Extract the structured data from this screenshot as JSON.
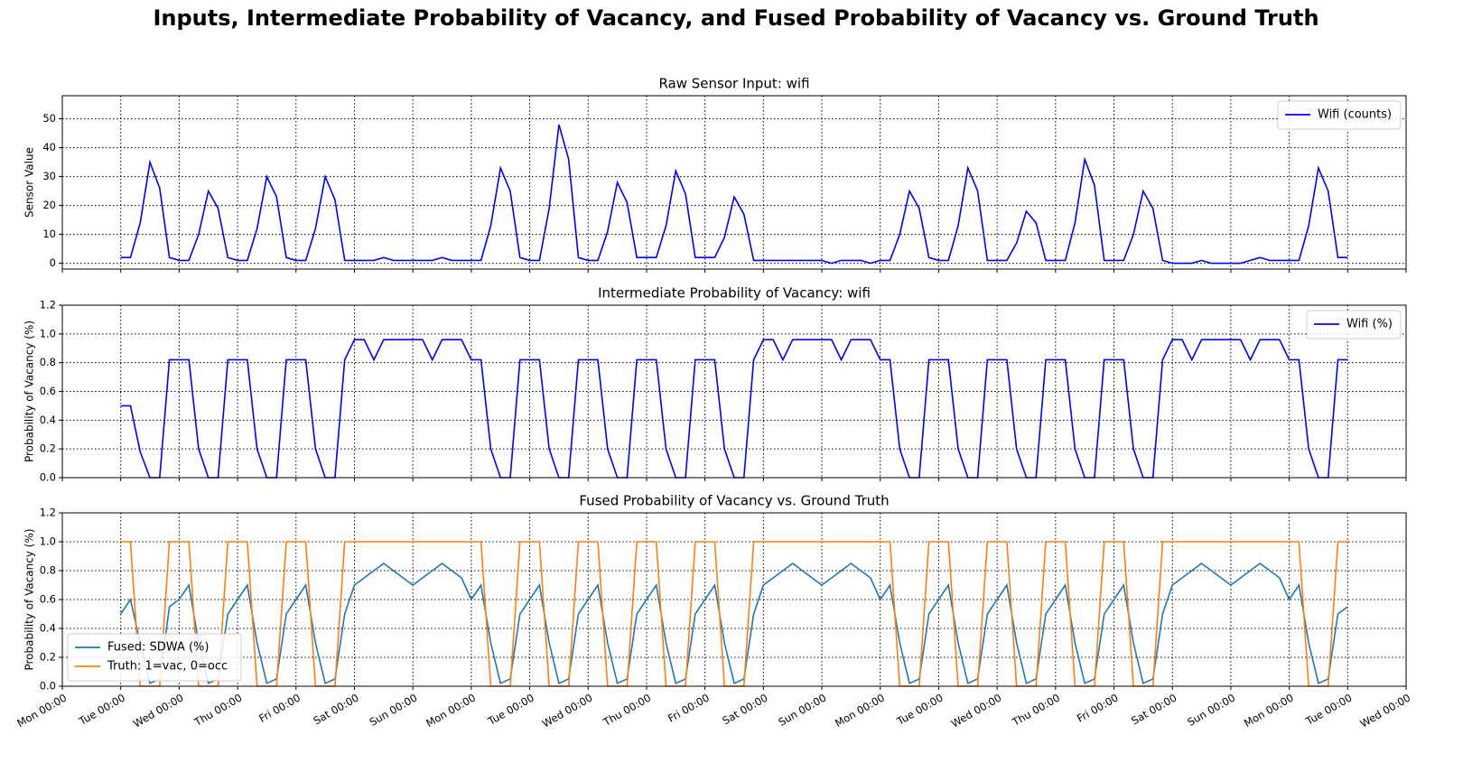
{
  "title": "Inputs, Intermediate Probability of Vacancy, and Fused Probability of Vacancy vs. Ground Truth",
  "chart_data": [
    {
      "type": "line",
      "title": "Raw Sensor Input: wifi",
      "ylabel": "Sensor Value",
      "legend": "upper right",
      "grid": true,
      "xlim": [
        0,
        552
      ],
      "ylim": [
        -2,
        58
      ],
      "yticks": [
        0,
        10,
        20,
        30,
        40,
        50
      ],
      "x": [
        24,
        28,
        32,
        36,
        40,
        44,
        48,
        52,
        56,
        60,
        64,
        68,
        72,
        76,
        80,
        84,
        88,
        92,
        96,
        100,
        104,
        108,
        112,
        116,
        120,
        124,
        128,
        132,
        136,
        140,
        144,
        148,
        152,
        156,
        160,
        164,
        168,
        172,
        176,
        180,
        184,
        188,
        192,
        196,
        200,
        204,
        208,
        212,
        216,
        220,
        224,
        228,
        232,
        236,
        240,
        244,
        248,
        252,
        256,
        260,
        264,
        268,
        272,
        276,
        280,
        284,
        288,
        292,
        296,
        300,
        304,
        308,
        312,
        316,
        320,
        324,
        328,
        332,
        336,
        340,
        344,
        348,
        352,
        356,
        360,
        364,
        368,
        372,
        376,
        380,
        384,
        388,
        392,
        396,
        400,
        404,
        408,
        412,
        416,
        420,
        424,
        428,
        432,
        436,
        440,
        444,
        448,
        452,
        456,
        460,
        464,
        468,
        472,
        476,
        480,
        484,
        488,
        492,
        496,
        500,
        504,
        508,
        512,
        516,
        520,
        524,
        528
      ],
      "series": [
        {
          "name": "Wifi (counts)",
          "color": "#0000ff",
          "values": [
            2,
            2,
            14,
            35,
            26,
            2,
            1,
            1,
            10,
            25,
            19,
            2,
            1,
            1,
            12,
            30,
            23,
            2,
            1,
            1,
            12,
            30,
            22,
            1,
            1,
            1,
            1,
            2,
            1,
            1,
            1,
            1,
            1,
            2,
            1,
            1,
            1,
            1,
            13,
            33,
            25,
            2,
            1,
            1,
            19,
            48,
            36,
            2,
            1,
            1,
            11,
            28,
            21,
            2,
            2,
            2,
            13,
            32,
            24,
            2,
            2,
            2,
            9,
            23,
            17,
            1,
            1,
            1,
            1,
            1,
            1,
            1,
            1,
            0,
            1,
            1,
            1,
            0,
            1,
            1,
            10,
            25,
            19,
            2,
            1,
            1,
            13,
            33,
            25,
            1,
            1,
            1,
            7,
            18,
            14,
            1,
            1,
            1,
            14,
            36,
            27,
            1,
            1,
            1,
            10,
            25,
            19,
            1,
            0,
            0,
            0,
            1,
            0,
            0,
            0,
            0,
            1,
            2,
            1,
            1,
            1,
            1,
            13,
            33,
            25,
            2,
            2
          ]
        }
      ]
    },
    {
      "type": "line",
      "title": "Intermediate Probability of Vacancy: wifi",
      "ylabel": "Probability of Vacancy (%)",
      "legend": "upper right",
      "grid": true,
      "xlim": [
        0,
        552
      ],
      "ylim": [
        0,
        1.2
      ],
      "yticks": [
        {
          "value": 0,
          "label": "0.0"
        },
        0.2,
        0.4,
        0.6,
        0.8,
        {
          "value": 1,
          "label": "1.0"
        },
        1.2
      ],
      "x": [
        24,
        28,
        32,
        36,
        40,
        44,
        48,
        52,
        56,
        60,
        64,
        68,
        72,
        76,
        80,
        84,
        88,
        92,
        96,
        100,
        104,
        108,
        112,
        116,
        120,
        124,
        128,
        132,
        136,
        140,
        144,
        148,
        152,
        156,
        160,
        164,
        168,
        172,
        176,
        180,
        184,
        188,
        192,
        196,
        200,
        204,
        208,
        212,
        216,
        220,
        224,
        228,
        232,
        236,
        240,
        244,
        248,
        252,
        256,
        260,
        264,
        268,
        272,
        276,
        280,
        284,
        288,
        292,
        296,
        300,
        304,
        308,
        312,
        316,
        320,
        324,
        328,
        332,
        336,
        340,
        344,
        348,
        352,
        356,
        360,
        364,
        368,
        372,
        376,
        380,
        384,
        388,
        392,
        396,
        400,
        404,
        408,
        412,
        416,
        420,
        424,
        428,
        432,
        436,
        440,
        444,
        448,
        452,
        456,
        460,
        464,
        468,
        472,
        476,
        480,
        484,
        488,
        492,
        496,
        500,
        504,
        508,
        512,
        516,
        520,
        524,
        528
      ],
      "series": [
        {
          "name": "Wifi (%)",
          "color": "#0000ff",
          "values": [
            0.5,
            0.5,
            0.18,
            0,
            0,
            0.82,
            0.82,
            0.82,
            0.2,
            0,
            0,
            0.82,
            0.82,
            0.82,
            0.2,
            0,
            0,
            0.82,
            0.82,
            0.82,
            0.2,
            0,
            0,
            0.82,
            0.96,
            0.96,
            0.82,
            0.96,
            0.96,
            0.96,
            0.96,
            0.96,
            0.82,
            0.96,
            0.96,
            0.96,
            0.82,
            0.82,
            0.2,
            0,
            0,
            0.82,
            0.82,
            0.82,
            0.2,
            0,
            0,
            0.82,
            0.82,
            0.82,
            0.2,
            0,
            0,
            0.82,
            0.82,
            0.82,
            0.2,
            0,
            0,
            0.82,
            0.82,
            0.82,
            0.2,
            0,
            0,
            0.82,
            0.96,
            0.96,
            0.82,
            0.96,
            0.96,
            0.96,
            0.96,
            0.96,
            0.82,
            0.96,
            0.96,
            0.96,
            0.82,
            0.82,
            0.2,
            0,
            0,
            0.82,
            0.82,
            0.82,
            0.2,
            0,
            0,
            0.82,
            0.82,
            0.82,
            0.2,
            0,
            0,
            0.82,
            0.82,
            0.82,
            0.2,
            0,
            0,
            0.82,
            0.82,
            0.82,
            0.2,
            0,
            0,
            0.82,
            0.96,
            0.96,
            0.82,
            0.96,
            0.96,
            0.96,
            0.96,
            0.96,
            0.82,
            0.96,
            0.96,
            0.96,
            0.82,
            0.82,
            0.2,
            0,
            0,
            0.82,
            0.82
          ]
        }
      ]
    },
    {
      "type": "line",
      "title": "Fused Probability of Vacancy vs. Ground Truth",
      "ylabel": "Probability of Vacancy (%)",
      "legend": "lower left",
      "grid": true,
      "xlim": [
        0,
        552
      ],
      "ylim": [
        0,
        1.2
      ],
      "yticks": [
        {
          "value": 0,
          "label": "0.0"
        },
        0.2,
        0.4,
        0.6,
        0.8,
        {
          "value": 1,
          "label": "1.0"
        },
        1.2
      ],
      "xticks": [
        {
          "value": 0,
          "label": "Mon 00:00"
        },
        {
          "value": 24,
          "label": "Tue 00:00"
        },
        {
          "value": 48,
          "label": "Wed 00:00"
        },
        {
          "value": 72,
          "label": "Thu 00:00"
        },
        {
          "value": 96,
          "label": "Fri 00:00"
        },
        {
          "value": 120,
          "label": "Sat 00:00"
        },
        {
          "value": 144,
          "label": "Sun 00:00"
        },
        {
          "value": 168,
          "label": "Mon 00:00"
        },
        {
          "value": 192,
          "label": "Tue 00:00"
        },
        {
          "value": 216,
          "label": "Wed 00:00"
        },
        {
          "value": 240,
          "label": "Thu 00:00"
        },
        {
          "value": 264,
          "label": "Fri 00:00"
        },
        {
          "value": 288,
          "label": "Sat 00:00"
        },
        {
          "value": 312,
          "label": "Sun 00:00"
        },
        {
          "value": 336,
          "label": "Mon 00:00"
        },
        {
          "value": 360,
          "label": "Tue 00:00"
        },
        {
          "value": 384,
          "label": "Wed 00:00"
        },
        {
          "value": 408,
          "label": "Thu 00:00"
        },
        {
          "value": 432,
          "label": "Fri 00:00"
        },
        {
          "value": 456,
          "label": "Sat 00:00"
        },
        {
          "value": 480,
          "label": "Sun 00:00"
        },
        {
          "value": 504,
          "label": "Mon 00:00"
        },
        {
          "value": 528,
          "label": "Tue 00:00"
        },
        {
          "value": 552,
          "label": "Wed 00:00"
        }
      ],
      "x": [
        24,
        28,
        32,
        36,
        40,
        44,
        48,
        52,
        56,
        60,
        64,
        68,
        72,
        76,
        80,
        84,
        88,
        92,
        96,
        100,
        104,
        108,
        112,
        116,
        120,
        124,
        128,
        132,
        136,
        140,
        144,
        148,
        152,
        156,
        160,
        164,
        168,
        172,
        176,
        180,
        184,
        188,
        192,
        196,
        200,
        204,
        208,
        212,
        216,
        220,
        224,
        228,
        232,
        236,
        240,
        244,
        248,
        252,
        256,
        260,
        264,
        268,
        272,
        276,
        280,
        284,
        288,
        292,
        296,
        300,
        304,
        308,
        312,
        316,
        320,
        324,
        328,
        332,
        336,
        340,
        344,
        348,
        352,
        356,
        360,
        364,
        368,
        372,
        376,
        380,
        384,
        388,
        392,
        396,
        400,
        404,
        408,
        412,
        416,
        420,
        424,
        428,
        432,
        436,
        440,
        444,
        448,
        452,
        456,
        460,
        464,
        468,
        472,
        476,
        480,
        484,
        488,
        492,
        496,
        500,
        504,
        508,
        512,
        516,
        520,
        524,
        528
      ],
      "series": [
        {
          "name": "Fused: SDWA (%)",
          "color": "#1f77b4",
          "values": [
            0.5,
            0.6,
            0.3,
            0.02,
            0.05,
            0.55,
            0.6,
            0.7,
            0.3,
            0.02,
            0.05,
            0.5,
            0.6,
            0.7,
            0.3,
            0.02,
            0.05,
            0.5,
            0.6,
            0.7,
            0.3,
            0.02,
            0.05,
            0.5,
            0.7,
            0.75,
            0.8,
            0.85,
            0.8,
            0.75,
            0.7,
            0.75,
            0.8,
            0.85,
            0.8,
            0.75,
            0.6,
            0.7,
            0.3,
            0.02,
            0.05,
            0.5,
            0.6,
            0.7,
            0.3,
            0.02,
            0.05,
            0.5,
            0.6,
            0.7,
            0.3,
            0.02,
            0.05,
            0.5,
            0.6,
            0.7,
            0.3,
            0.02,
            0.05,
            0.5,
            0.6,
            0.7,
            0.3,
            0.02,
            0.05,
            0.5,
            0.7,
            0.75,
            0.8,
            0.85,
            0.8,
            0.75,
            0.7,
            0.75,
            0.8,
            0.85,
            0.8,
            0.75,
            0.6,
            0.7,
            0.3,
            0.02,
            0.05,
            0.5,
            0.6,
            0.7,
            0.3,
            0.02,
            0.05,
            0.5,
            0.6,
            0.7,
            0.3,
            0.02,
            0.05,
            0.5,
            0.6,
            0.7,
            0.3,
            0.02,
            0.05,
            0.5,
            0.6,
            0.7,
            0.3,
            0.02,
            0.05,
            0.5,
            0.7,
            0.75,
            0.8,
            0.85,
            0.8,
            0.75,
            0.7,
            0.75,
            0.8,
            0.85,
            0.8,
            0.75,
            0.6,
            0.7,
            0.3,
            0.02,
            0.05,
            0.5,
            0.55
          ]
        },
        {
          "name": "Truth: 1=vac, 0=occ",
          "color": "#ff7f0e",
          "values": [
            1,
            1,
            0,
            0,
            0,
            1,
            1,
            1,
            0,
            0,
            0,
            1,
            1,
            1,
            0,
            0,
            0,
            1,
            1,
            1,
            0,
            0,
            0,
            1,
            1,
            1,
            1,
            1,
            1,
            1,
            1,
            1,
            1,
            1,
            1,
            1,
            1,
            1,
            0,
            0,
            0,
            1,
            1,
            1,
            0,
            0,
            0,
            1,
            1,
            1,
            0,
            0,
            0,
            1,
            1,
            1,
            0,
            0,
            0,
            1,
            1,
            1,
            0,
            0,
            0,
            1,
            1,
            1,
            1,
            1,
            1,
            1,
            1,
            1,
            1,
            1,
            1,
            1,
            1,
            1,
            0,
            0,
            0,
            1,
            1,
            1,
            0,
            0,
            0,
            1,
            1,
            1,
            0,
            0,
            0,
            1,
            1,
            1,
            0,
            0,
            0,
            1,
            1,
            1,
            0,
            0,
            0,
            1,
            1,
            1,
            1,
            1,
            1,
            1,
            1,
            1,
            1,
            1,
            1,
            1,
            1,
            1,
            0,
            0,
            0,
            1,
            1
          ]
        }
      ]
    }
  ]
}
